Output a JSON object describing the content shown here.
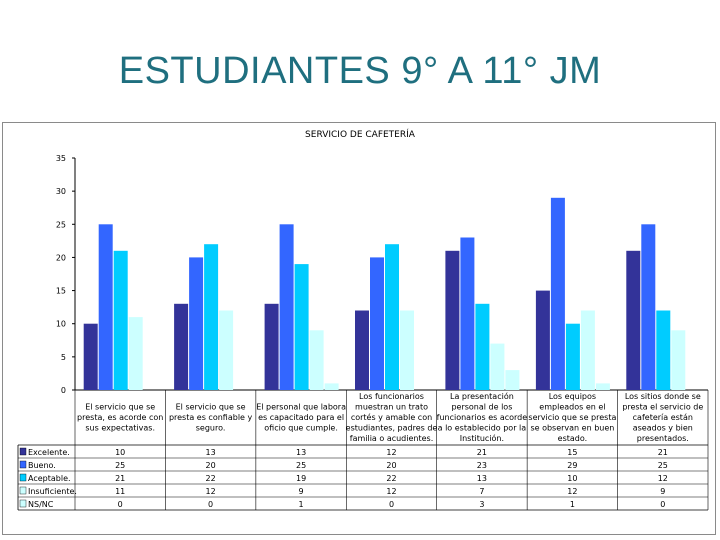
{
  "slide": {
    "title": "ESTUDIANTES 9° A  11° JM"
  },
  "colors": {
    "Excelente.": "#333399",
    "Bueno.": "#3366ff",
    "Aceptable.": "#00ccff",
    "Insuficiente.": "#ccffff",
    "NS/NC": "#ccffff"
  },
  "chart_data": {
    "type": "bar",
    "title": "SERVICIO DE CAFETERÍA",
    "ylim": [
      0,
      35
    ],
    "yticks": [
      0,
      5,
      10,
      15,
      20,
      25,
      30,
      35
    ],
    "grid": false,
    "legend": "data-table-left",
    "categories": [
      "El servicio que se presta, es acorde con sus expectativas.",
      "El servicio que se presta es confiable y seguro.",
      "El personal que labora es capacitado para el oficio que cumple.",
      "Los funcionarios muestran un trato cortés y amable con estudiantes, padres de familia o acudientes.",
      "La presentación personal de los funcionarios es acorde a lo establecido por la Institución.",
      "Los equipos empleados en el servicio que se presta se observan en buen estado.",
      "Los sitios donde se presta el servicio de cafetería están aseados y bien presentados."
    ],
    "category_lines": [
      [
        "",
        "El servicio que se",
        "presta, es acorde con",
        "sus expectativas."
      ],
      [
        "",
        "El servicio que se",
        "presta es confiable y",
        "seguro."
      ],
      [
        "",
        "El personal que labora",
        "es capacitado para el",
        "oficio que cumple."
      ],
      [
        "Los funcionarios",
        "muestran un trato",
        "cortés y amable con",
        "estudiantes, padres de",
        "familia o acudientes."
      ],
      [
        "La presentación",
        "personal de los",
        "funcionarios es acorde",
        "a lo establecido por la",
        "Institución."
      ],
      [
        "Los equipos",
        "empleados en el",
        "servicio que se presta",
        "se observan en buen",
        "estado."
      ],
      [
        "Los sitios donde se",
        "presta el servicio de",
        "cafetería están",
        "aseados y bien",
        "presentados."
      ]
    ],
    "series": [
      {
        "name": "Excelente.",
        "values": [
          10,
          13,
          13,
          12,
          21,
          15,
          21
        ]
      },
      {
        "name": "Bueno.",
        "values": [
          25,
          20,
          25,
          20,
          23,
          29,
          25
        ]
      },
      {
        "name": "Aceptable.",
        "values": [
          21,
          22,
          19,
          22,
          13,
          10,
          12
        ]
      },
      {
        "name": "Insuficiente.",
        "values": [
          11,
          12,
          9,
          12,
          7,
          12,
          9
        ]
      },
      {
        "name": "NS/NC",
        "values": [
          0,
          0,
          1,
          0,
          3,
          1,
          0
        ]
      }
    ]
  }
}
